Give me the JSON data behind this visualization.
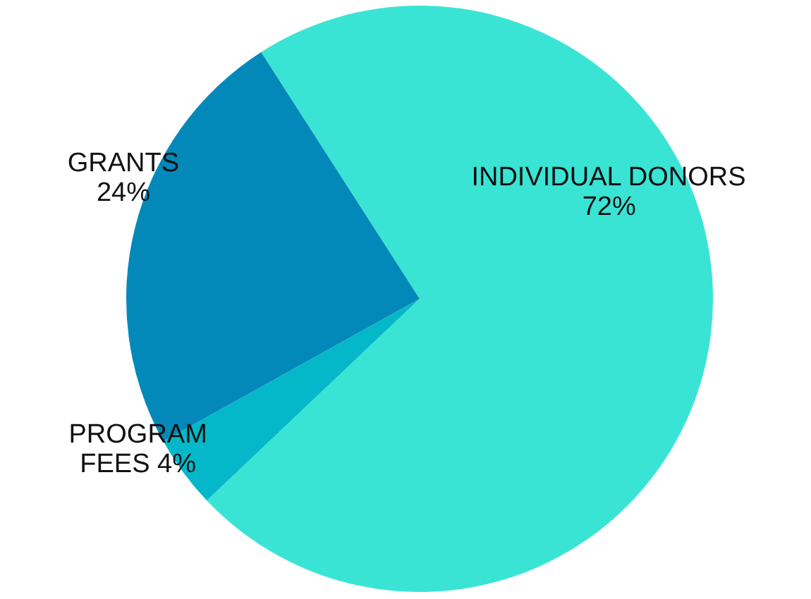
{
  "chart_data": {
    "type": "pie",
    "categories": [
      "INDIVIDUAL DONORS",
      "PROGRAM FEES",
      "GRANTS"
    ],
    "values": [
      72,
      4,
      24
    ],
    "colors": [
      "#3ae4d5",
      "#05b8c9",
      "#0389b9"
    ],
    "value_labels": [
      "72%",
      "4%",
      "24%"
    ],
    "legend": false
  }
}
